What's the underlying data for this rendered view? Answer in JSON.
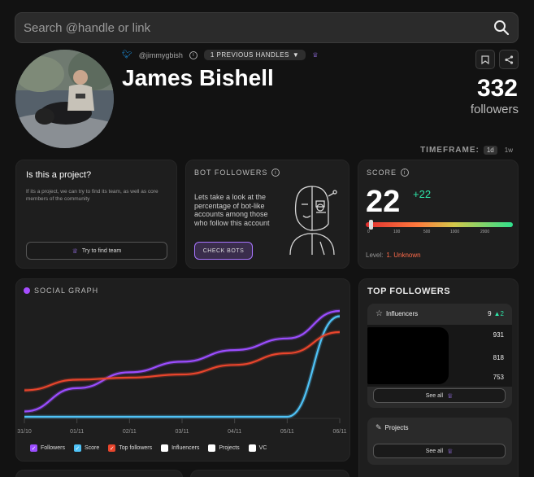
{
  "search": {
    "placeholder": "Search @handle or link"
  },
  "profile": {
    "handle": "@jimmygbish",
    "previous_handles": "1 PREVIOUS HANDLES",
    "name": "James Bishell",
    "followers_count": "332",
    "followers_label": "followers"
  },
  "timeframe": {
    "label": "TIMEFRAME:",
    "options": [
      "1d",
      "1w"
    ],
    "selected": "1d"
  },
  "project_card": {
    "title": "Is this a project?",
    "body": "If its a project, we can try to find its team, as well as core members of the community",
    "button": "Try to find team"
  },
  "bot_card": {
    "title": "BOT FOLLOWERS",
    "body": "Lets take a look at the percentage of bot-like accounts among those who follow this account",
    "button": "CHECK BOTS"
  },
  "score_card": {
    "title": "SCORE",
    "value": "22",
    "delta": "+22",
    "scale": [
      0,
      100,
      500,
      1000,
      2000
    ],
    "scale_fraction": 0.022,
    "level_label": "Level:",
    "level_value": "1. Unknown",
    "colors": {
      "delta": "#2ee6a8",
      "level": "#ff6b4a"
    }
  },
  "social_graph": {
    "title": "SOCIAL GRAPH",
    "legend": [
      {
        "label": "Followers",
        "color": "#9b4dff",
        "checked": true
      },
      {
        "label": "Score",
        "color": "#4fc3f7",
        "checked": true
      },
      {
        "label": "Top followers",
        "color": "#e8452c",
        "checked": true
      },
      {
        "label": "Influencers",
        "color": "#ffffff",
        "checked": false
      },
      {
        "label": "Projects",
        "color": "#ffffff",
        "checked": false
      },
      {
        "label": "VC",
        "color": "#ffffff",
        "checked": false
      }
    ]
  },
  "chart_data": {
    "type": "line",
    "title": "SOCIAL GRAPH",
    "x": [
      "31/10",
      "01/11",
      "02/11",
      "03/11",
      "04/11",
      "05/11",
      "06/11"
    ],
    "series": [
      {
        "name": "Followers",
        "color": "#9b4dff",
        "values": [
          5,
          27,
          42,
          52,
          63,
          74,
          100
        ]
      },
      {
        "name": "Score",
        "color": "#4fc3f7",
        "values": [
          0,
          0,
          0,
          0,
          0,
          0,
          95
        ]
      },
      {
        "name": "Top followers",
        "color": "#e8452c",
        "values": [
          25,
          35,
          37,
          40,
          49,
          60,
          80
        ]
      }
    ],
    "ylim": [
      0,
      100
    ]
  },
  "top_followers": {
    "title": "TOP FOLLOWERS",
    "influencers": {
      "label": "Influencers",
      "count": "9",
      "delta": "2",
      "values": [
        "931",
        "818",
        "753"
      ],
      "see_all": "See all"
    },
    "projects": {
      "label": "Projects",
      "see_all": "See all"
    }
  }
}
